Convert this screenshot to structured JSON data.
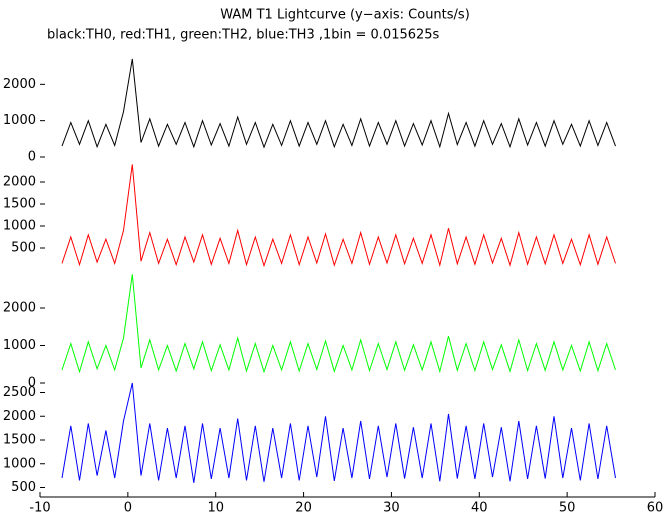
{
  "chart_data": {
    "type": "line",
    "title": "WAM T1 Lightcurve (y−axis: Counts/s)",
    "subtitle": "black:TH0, red:TH1, green:TH2, blue:TH3 ,1bin = 0.015625s",
    "xlim": [
      -10,
      60
    ],
    "xticks": [
      -10,
      0,
      10,
      20,
      30,
      40,
      50,
      60
    ],
    "x": [
      -7.5,
      -6.5,
      -5.5,
      -4.5,
      -3.5,
      -2.5,
      -1.5,
      -0.5,
      0.5,
      1.5,
      2.5,
      3.5,
      4.5,
      5.5,
      6.5,
      7.5,
      8.5,
      9.5,
      10.5,
      11.5,
      12.5,
      13.5,
      14.5,
      15.5,
      16.5,
      17.5,
      18.5,
      19.5,
      20.5,
      21.5,
      22.5,
      23.5,
      24.5,
      25.5,
      26.5,
      27.5,
      28.5,
      29.5,
      30.5,
      31.5,
      32.5,
      33.5,
      34.5,
      35.5,
      36.5,
      37.5,
      38.5,
      39.5,
      40.5,
      41.5,
      42.5,
      43.5,
      44.5,
      45.5,
      46.5,
      47.5,
      48.5,
      49.5,
      50.5,
      51.5,
      52.5,
      53.5,
      54.5,
      55.5
    ],
    "panels": [
      {
        "color": "#000000",
        "ylim": [
          0,
          3000
        ],
        "yticks": [
          0,
          1000,
          2000
        ],
        "values": [
          300,
          950,
          350,
          1000,
          280,
          900,
          320,
          1250,
          2700,
          400,
          1050,
          300,
          900,
          350,
          950,
          280,
          1000,
          330,
          920,
          300,
          1100,
          350,
          950,
          270,
          900,
          320,
          1000,
          300,
          950,
          350,
          1000,
          280,
          900,
          320,
          1050,
          300,
          950,
          350,
          1000,
          300,
          920,
          330,
          1000,
          280,
          1200,
          340,
          950,
          300,
          1000,
          350,
          920,
          280,
          1050,
          330,
          950,
          300,
          1000,
          350,
          900,
          300,
          1000,
          320,
          950,
          300
        ]
      },
      {
        "color": "#ff0000",
        "ylim": [
          0,
          2500
        ],
        "yticks": [
          500,
          1000,
          1500,
          2000
        ],
        "values": [
          150,
          750,
          120,
          800,
          180,
          700,
          150,
          900,
          2400,
          200,
          850,
          150,
          700,
          120,
          750,
          180,
          800,
          130,
          720,
          150,
          900,
          120,
          750,
          100,
          700,
          150,
          800,
          120,
          750,
          160,
          820,
          110,
          700,
          150,
          850,
          130,
          750,
          160,
          800,
          140,
          720,
          150,
          800,
          110,
          950,
          140,
          750,
          130,
          800,
          160,
          720,
          110,
          850,
          130,
          750,
          140,
          800,
          150,
          700,
          120,
          800,
          130,
          750,
          150
        ]
      },
      {
        "color": "#00ff00",
        "ylim": [
          0,
          3000
        ],
        "yticks": [
          0,
          1000,
          2000
        ],
        "values": [
          350,
          1050,
          300,
          1100,
          380,
          1000,
          350,
          1200,
          2900,
          400,
          1150,
          350,
          1000,
          320,
          1050,
          380,
          1100,
          330,
          1020,
          350,
          1200,
          320,
          1050,
          300,
          1000,
          350,
          1100,
          320,
          1050,
          360,
          1120,
          310,
          1000,
          350,
          1150,
          330,
          1050,
          360,
          1100,
          340,
          1020,
          350,
          1100,
          310,
          1250,
          340,
          1050,
          330,
          1100,
          360,
          1020,
          310,
          1150,
          330,
          1050,
          340,
          1100,
          350,
          1000,
          320,
          1100,
          330,
          1050,
          350
        ]
      },
      {
        "color": "#0000ff",
        "ylim": [
          300,
          2700
        ],
        "yticks": [
          500,
          1000,
          1500,
          2000,
          2500
        ],
        "values": [
          700,
          1800,
          650,
          1850,
          750,
          1700,
          700,
          1900,
          2700,
          750,
          1850,
          650,
          1750,
          700,
          1800,
          600,
          1850,
          680,
          1750,
          700,
          1950,
          650,
          1800,
          620,
          1750,
          700,
          1850,
          650,
          1800,
          720,
          2000,
          640,
          1750,
          700,
          1900,
          680,
          1800,
          720,
          1850,
          690,
          1770,
          700,
          1850,
          630,
          2050,
          690,
          1800,
          680,
          1850,
          720,
          1770,
          630,
          1900,
          680,
          1800,
          690,
          2000,
          700,
          1750,
          650,
          1850,
          680,
          1800,
          700
        ]
      }
    ]
  }
}
